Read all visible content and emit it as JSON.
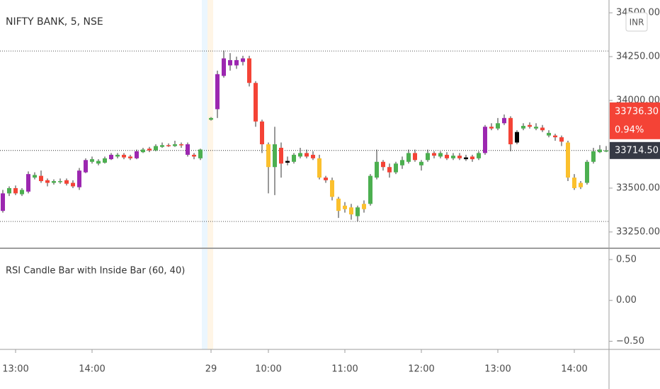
{
  "chart_data": {
    "type": "candlestick",
    "title": "NIFTY BANK, 5, NSE",
    "currency": "INR",
    "categories": [
      null,
      null,
      "13:00",
      null,
      null,
      null,
      null,
      null,
      null,
      null,
      null,
      null,
      null,
      null,
      "14:00",
      null,
      null,
      null,
      null,
      null,
      null,
      null,
      null,
      null,
      null,
      null,
      null,
      null,
      null,
      null,
      null,
      null,
      "29",
      null,
      null,
      null,
      null,
      null,
      null,
      null,
      null,
      "10:00",
      null,
      null,
      null,
      null,
      null,
      null,
      null,
      null,
      null,
      null,
      null,
      "11:00",
      null,
      null,
      null,
      null,
      null,
      null,
      null,
      null,
      null,
      null,
      null,
      "12:00",
      null,
      null,
      null,
      null,
      null,
      null,
      null,
      null,
      null,
      null,
      null,
      "13:00",
      null,
      null,
      null,
      null,
      null,
      null,
      null,
      null,
      null,
      null,
      null,
      "14:00",
      null,
      null,
      null,
      null,
      null
    ],
    "open": [
      33370,
      33470,
      33500,
      33465,
      33480,
      33560,
      33570,
      33545,
      33530,
      33535,
      33545,
      33530,
      33505,
      33590,
      33650,
      33640,
      33645,
      33665,
      33680,
      33690,
      33680,
      33670,
      33705,
      33725,
      33715,
      33735,
      33745,
      33740,
      33750,
      33750,
      33690,
      33670,
      33890,
      33950,
      34140,
      34230,
      34200,
      34220,
      34240,
      34100,
      33880,
      33750,
      33620,
      33730,
      33655,
      33650,
      33680,
      33700,
      33690,
      33670,
      33560,
      33545,
      33440,
      33380,
      33390,
      33340,
      33380,
      33410,
      33560,
      33650,
      33620,
      33590,
      33630,
      33650,
      33700,
      33630,
      33660,
      33700,
      33680,
      33690,
      33670,
      33685,
      33675,
      33680,
      33670,
      33700,
      33850,
      33840,
      33870,
      33900,
      33820,
      33840,
      33860,
      33840,
      33845,
      33800,
      33800,
      33790,
      33760,
      33560,
      33505,
      33530,
      33650,
      33705,
      33712
    ],
    "high": [
      33490,
      33510,
      33515,
      33500,
      33595,
      33590,
      33600,
      33555,
      33550,
      33555,
      33555,
      33545,
      33615,
      33670,
      33680,
      33665,
      33680,
      33700,
      33700,
      33700,
      33690,
      33720,
      33730,
      33735,
      33750,
      33760,
      33755,
      33770,
      33760,
      33760,
      33700,
      33725,
      33905,
      34170,
      34285,
      34270,
      34250,
      34255,
      34255,
      34110,
      33890,
      33760,
      33850,
      33760,
      33680,
      33700,
      33730,
      33720,
      33710,
      33690,
      33570,
      33560,
      33450,
      33420,
      33410,
      33400,
      33430,
      33580,
      33720,
      33660,
      33640,
      33650,
      33680,
      33720,
      33720,
      33660,
      33720,
      33710,
      33710,
      33705,
      33700,
      33700,
      33690,
      33690,
      33710,
      33860,
      33870,
      33900,
      33920,
      33910,
      33830,
      33870,
      33875,
      33870,
      33860,
      33830,
      33810,
      33800,
      33770,
      33580,
      33540,
      33660,
      33730,
      33745,
      33740
    ],
    "low": [
      33360,
      33455,
      33460,
      33455,
      33470,
      33550,
      33530,
      33510,
      33520,
      33525,
      33515,
      33500,
      33490,
      33585,
      33640,
      33630,
      33640,
      33660,
      33670,
      33665,
      33660,
      33665,
      33700,
      33705,
      33710,
      33730,
      33735,
      33735,
      33730,
      33680,
      33665,
      33660,
      33885,
      33900,
      34130,
      34170,
      34180,
      34200,
      34080,
      33850,
      33700,
      33470,
      33460,
      33560,
      33630,
      33640,
      33670,
      33670,
      33660,
      33550,
      33530,
      33430,
      33330,
      33360,
      33320,
      33310,
      33360,
      33400,
      33550,
      33600,
      33560,
      33580,
      33610,
      33640,
      33650,
      33600,
      33650,
      33670,
      33670,
      33660,
      33660,
      33660,
      33655,
      33650,
      33660,
      33690,
      33830,
      33830,
      33860,
      33710,
      33750,
      33830,
      33840,
      33830,
      33820,
      33790,
      33770,
      33740,
      33540,
      33490,
      33495,
      33520,
      33640,
      33700,
      33705
    ],
    "close": [
      33470,
      33500,
      33470,
      33490,
      33580,
      33575,
      33540,
      33530,
      33540,
      33540,
      33525,
      33510,
      33600,
      33660,
      33665,
      33655,
      33670,
      33690,
      33690,
      33675,
      33670,
      33710,
      33720,
      33715,
      33740,
      33745,
      33740,
      33750,
      33745,
      33690,
      33680,
      33720,
      33900,
      34150,
      34240,
      34200,
      34230,
      34240,
      34100,
      33880,
      33750,
      33620,
      33750,
      33640,
      33645,
      33690,
      33700,
      33680,
      33670,
      33560,
      33545,
      33450,
      33370,
      33400,
      33350,
      33390,
      33410,
      33570,
      33650,
      33620,
      33590,
      33640,
      33660,
      33700,
      33660,
      33650,
      33700,
      33685,
      33700,
      33670,
      33685,
      33670,
      33665,
      33665,
      33700,
      33850,
      33840,
      33870,
      33900,
      33750,
      33760,
      33855,
      33850,
      33850,
      33830,
      33815,
      33790,
      33765,
      33560,
      33500,
      33530,
      33650,
      33710,
      33720,
      33714.5
    ],
    "colors": [
      "#9c27b0",
      "#4caf50",
      "#f44336",
      "#4caf50",
      "#9c27b0",
      "#4caf50",
      "#f44336",
      "#f44336",
      "#4caf50",
      "#4caf50",
      "#f44336",
      "#f44336",
      "#9c27b0",
      "#9c27b0",
      "#4caf50",
      "#4caf50",
      "#4caf50",
      "#9c27b0",
      "#4caf50",
      "#f44336",
      "#f44336",
      "#9c27b0",
      "#4caf50",
      "#f44336",
      "#4caf50",
      "#4caf50",
      "#f44336",
      "#4caf50",
      "#f44336",
      "#9c27b0",
      "#f44336",
      "#4caf50",
      "#4caf50",
      "#9c27b0",
      "#9c27b0",
      "#9c27b0",
      "#9c27b0",
      "#9c27b0",
      "#f44336",
      "#f44336",
      "#f44336",
      "#fbc02d",
      "#4caf50",
      "#f44336",
      "#000000",
      "#4caf50",
      "#4caf50",
      "#f44336",
      "#f44336",
      "#fbc02d",
      "#f44336",
      "#fbc02d",
      "#fbc02d",
      "#fbc02d",
      "#fbc02d",
      "#4caf50",
      "#fbc02d",
      "#4caf50",
      "#4caf50",
      "#f44336",
      "#f44336",
      "#4caf50",
      "#4caf50",
      "#4caf50",
      "#f44336",
      "#4caf50",
      "#4caf50",
      "#f44336",
      "#4caf50",
      "#f44336",
      "#4caf50",
      "#f44336",
      "#000000",
      "#f44336",
      "#4caf50",
      "#9c27b0",
      "#f44336",
      "#4caf50",
      "#9c27b0",
      "#f44336",
      "#000000",
      "#4caf50",
      "#f44336",
      "#4caf50",
      "#f44336",
      "#4caf50",
      "#f44336",
      "#f44336",
      "#fbc02d",
      "#fbc02d",
      "#fbc02d",
      "#4caf50",
      "#4caf50",
      "#4caf50",
      "#4caf50"
    ],
    "wick_color": "#333333",
    "ylim": [
      33161,
      34573
    ],
    "yticks": [
      {
        "value": 33250,
        "label": "33250.00"
      },
      {
        "value": 33500,
        "label": "33500.00"
      },
      {
        "value": 34000,
        "label": "34000.00"
      },
      {
        "value": 34250,
        "label": "34250.00"
      },
      {
        "value": 34500,
        "label": "34500.00"
      }
    ],
    "reference_lines": [
      34282,
      33310
    ],
    "price_labels": [
      {
        "value": 33736.3,
        "label": "33736.30",
        "change": {
          "value": 0.94,
          "label": "0.94%"
        },
        "color": "#f44336"
      },
      {
        "value": 33714.5,
        "label": "33714.50",
        "color": "#363a45"
      }
    ],
    "indicator": {
      "title": "RSI Candle Bar with Inside Bar (60, 40)",
      "ylim": [
        -0.6,
        0.63
      ],
      "yticks": [
        {
          "value": 0.5,
          "label": "0.50"
        },
        {
          "value": 0,
          "label": "0.00"
        },
        {
          "value": -0.5,
          "label": "−0.50"
        }
      ]
    }
  }
}
